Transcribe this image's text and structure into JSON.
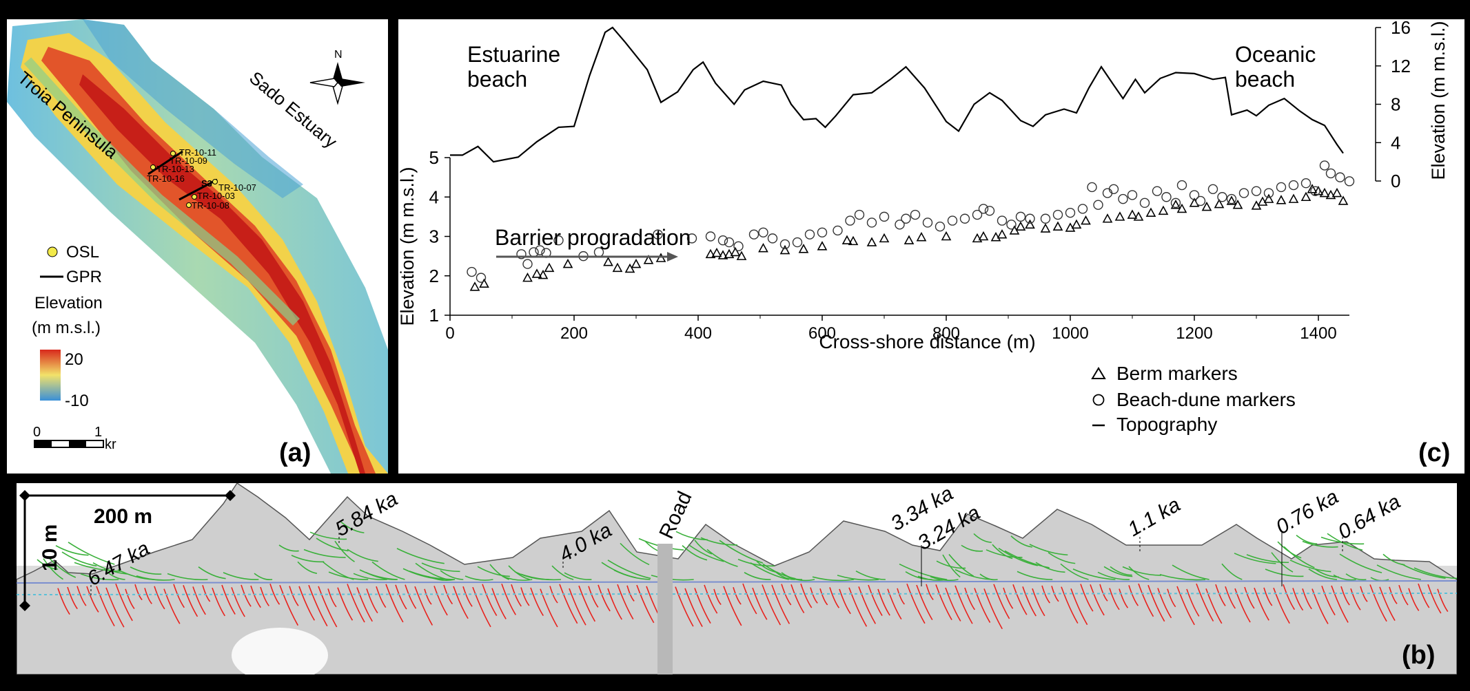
{
  "panel_a": {
    "label": "(a)",
    "place_names": {
      "peninsula": "Troia Peninsula",
      "estuary": "Sado Estuary"
    },
    "north_label": "N",
    "section_label": "S3",
    "samples": [
      "TR-10-11",
      "TR-10-09",
      "TR-10-13",
      "TR-10-16",
      "TR-10-07",
      "TR-10-03",
      "TR-10-08"
    ],
    "legend": {
      "osl": "OSL",
      "gpr": "GPR",
      "elevation_title_1": "Elevation",
      "elevation_title_2": "(m m.s.l.)",
      "max": "20",
      "min": "-10"
    },
    "scale": {
      "zero": "0",
      "one": "1",
      "unit": "kr"
    },
    "colors": {
      "low": "#3a8fd8",
      "mid": "#f2e26a",
      "high": "#d8281c"
    }
  },
  "panel_c": {
    "label": "(c)",
    "corner_left": [
      "Estuarine",
      "beach"
    ],
    "corner_right": [
      "Oceanic",
      "beach"
    ],
    "arrow_label": "Barrier progradation",
    "legend": [
      "Berm markers",
      "Beach-dune markers",
      "Topography"
    ]
  },
  "panel_b": {
    "label": "(b)",
    "scale_h": "200 m",
    "scale_v": "10 m",
    "road_label": "Road",
    "ages": [
      "6.47 ka",
      "5.84 ka",
      "4.0 ka",
      "3.34 ka",
      "3.24 ka",
      "1.1 ka",
      "0.76 ka",
      "0.64 ka"
    ],
    "colors": {
      "topsets": "#3ab03a",
      "foresets": "#e8231e",
      "bound": "#7a8ecf",
      "water": "#5bc0d8"
    }
  },
  "chart_data": {
    "type": "scatter",
    "title": "",
    "xlabel": "Cross-shore distance (m)",
    "ylabel": "Elevation (m m.s.l.)",
    "y2label": "Elevation (m m.s.l.)",
    "xlim": [
      0,
      1450
    ],
    "ylim": [
      1,
      5
    ],
    "y2lim": [
      0,
      16
    ],
    "xticks": [
      0,
      200,
      400,
      600,
      800,
      1000,
      1200,
      1400
    ],
    "yticks": [
      1,
      2,
      3,
      4,
      5
    ],
    "y2ticks": [
      0,
      4,
      8,
      12,
      16
    ],
    "series": [
      {
        "name": "Berm markers",
        "marker": "triangle",
        "points": [
          [
            40,
            1.72
          ],
          [
            55,
            1.8
          ],
          [
            125,
            1.95
          ],
          [
            140,
            2.05
          ],
          [
            150,
            2.02
          ],
          [
            160,
            2.2
          ],
          [
            190,
            2.3
          ],
          [
            255,
            2.35
          ],
          [
            270,
            2.2
          ],
          [
            290,
            2.18
          ],
          [
            300,
            2.3
          ],
          [
            320,
            2.4
          ],
          [
            340,
            2.45
          ],
          [
            420,
            2.55
          ],
          [
            430,
            2.58
          ],
          [
            440,
            2.52
          ],
          [
            450,
            2.55
          ],
          [
            460,
            2.6
          ],
          [
            470,
            2.5
          ],
          [
            505,
            2.7
          ],
          [
            540,
            2.65
          ],
          [
            570,
            2.68
          ],
          [
            600,
            2.75
          ],
          [
            640,
            2.9
          ],
          [
            650,
            2.88
          ],
          [
            680,
            2.85
          ],
          [
            700,
            2.95
          ],
          [
            740,
            2.9
          ],
          [
            760,
            2.98
          ],
          [
            800,
            3.0
          ],
          [
            850,
            2.95
          ],
          [
            860,
            3.0
          ],
          [
            880,
            2.98
          ],
          [
            890,
            3.05
          ],
          [
            910,
            3.15
          ],
          [
            920,
            3.25
          ],
          [
            935,
            3.3
          ],
          [
            960,
            3.2
          ],
          [
            980,
            3.25
          ],
          [
            1000,
            3.22
          ],
          [
            1010,
            3.3
          ],
          [
            1025,
            3.4
          ],
          [
            1060,
            3.45
          ],
          [
            1080,
            3.5
          ],
          [
            1100,
            3.55
          ],
          [
            1110,
            3.5
          ],
          [
            1130,
            3.6
          ],
          [
            1150,
            3.65
          ],
          [
            1170,
            3.8
          ],
          [
            1180,
            3.7
          ],
          [
            1200,
            3.85
          ],
          [
            1220,
            3.75
          ],
          [
            1240,
            3.82
          ],
          [
            1260,
            3.9
          ],
          [
            1270,
            3.8
          ],
          [
            1300,
            3.78
          ],
          [
            1310,
            3.88
          ],
          [
            1320,
            3.95
          ],
          [
            1340,
            3.92
          ],
          [
            1360,
            3.95
          ],
          [
            1380,
            4.0
          ],
          [
            1390,
            4.2
          ],
          [
            1400,
            4.15
          ],
          [
            1410,
            4.1
          ],
          [
            1420,
            4.05
          ],
          [
            1430,
            4.1
          ],
          [
            1440,
            3.9
          ]
        ]
      },
      {
        "name": "Beach-dune markers",
        "marker": "circle",
        "points": [
          [
            35,
            2.1
          ],
          [
            50,
            1.95
          ],
          [
            115,
            2.55
          ],
          [
            125,
            2.3
          ],
          [
            135,
            2.6
          ],
          [
            145,
            2.65
          ],
          [
            155,
            2.58
          ],
          [
            175,
            2.9
          ],
          [
            215,
            2.5
          ],
          [
            240,
            2.6
          ],
          [
            335,
            3.05
          ],
          [
            390,
            2.95
          ],
          [
            420,
            3.0
          ],
          [
            440,
            2.9
          ],
          [
            450,
            2.85
          ],
          [
            465,
            2.75
          ],
          [
            490,
            3.05
          ],
          [
            505,
            3.1
          ],
          [
            520,
            2.95
          ],
          [
            540,
            2.8
          ],
          [
            560,
            2.85
          ],
          [
            580,
            3.05
          ],
          [
            600,
            3.1
          ],
          [
            625,
            3.15
          ],
          [
            645,
            3.4
          ],
          [
            660,
            3.55
          ],
          [
            680,
            3.35
          ],
          [
            700,
            3.5
          ],
          [
            725,
            3.3
          ],
          [
            735,
            3.45
          ],
          [
            750,
            3.55
          ],
          [
            770,
            3.35
          ],
          [
            790,
            3.25
          ],
          [
            810,
            3.4
          ],
          [
            830,
            3.45
          ],
          [
            850,
            3.55
          ],
          [
            860,
            3.7
          ],
          [
            870,
            3.65
          ],
          [
            890,
            3.4
          ],
          [
            905,
            3.3
          ],
          [
            920,
            3.5
          ],
          [
            935,
            3.45
          ],
          [
            960,
            3.45
          ],
          [
            980,
            3.55
          ],
          [
            1000,
            3.6
          ],
          [
            1020,
            3.7
          ],
          [
            1035,
            4.25
          ],
          [
            1045,
            3.8
          ],
          [
            1060,
            4.1
          ],
          [
            1070,
            4.2
          ],
          [
            1085,
            3.95
          ],
          [
            1100,
            4.05
          ],
          [
            1120,
            3.85
          ],
          [
            1140,
            4.15
          ],
          [
            1155,
            4.0
          ],
          [
            1170,
            3.85
          ],
          [
            1180,
            4.3
          ],
          [
            1200,
            4.05
          ],
          [
            1210,
            3.9
          ],
          [
            1230,
            4.2
          ],
          [
            1245,
            4.0
          ],
          [
            1260,
            3.95
          ],
          [
            1280,
            4.1
          ],
          [
            1300,
            4.15
          ],
          [
            1320,
            4.1
          ],
          [
            1340,
            4.25
          ],
          [
            1360,
            4.3
          ],
          [
            1380,
            4.35
          ],
          [
            1395,
            4.15
          ],
          [
            1410,
            4.8
          ],
          [
            1420,
            4.6
          ],
          [
            1435,
            4.5
          ],
          [
            1450,
            4.4
          ]
        ]
      },
      {
        "name": "Topography",
        "marker": "line",
        "axis": "right",
        "points": [
          [
            0,
            2.7
          ],
          [
            20,
            2.7
          ],
          [
            45,
            3.6
          ],
          [
            70,
            2
          ],
          [
            110,
            2.5
          ],
          [
            140,
            4.1
          ],
          [
            175,
            5.6
          ],
          [
            200,
            5.7
          ],
          [
            225,
            11
          ],
          [
            250,
            15.5
          ],
          [
            262,
            16
          ],
          [
            282,
            14.5
          ],
          [
            318,
            11.6
          ],
          [
            340,
            8.2
          ],
          [
            367,
            9.3
          ],
          [
            392,
            11.6
          ],
          [
            408,
            12.4
          ],
          [
            428,
            10.2
          ],
          [
            458,
            8
          ],
          [
            475,
            9.5
          ],
          [
            505,
            10.4
          ],
          [
            534,
            10
          ],
          [
            550,
            8
          ],
          [
            570,
            6.4
          ],
          [
            590,
            6.5
          ],
          [
            605,
            5.6
          ],
          [
            622,
            6.8
          ],
          [
            650,
            9
          ],
          [
            680,
            9.2
          ],
          [
            710,
            10.6
          ],
          [
            735,
            11.9
          ],
          [
            765,
            9.7
          ],
          [
            800,
            6.2
          ],
          [
            820,
            5.2
          ],
          [
            845,
            8
          ],
          [
            870,
            9.2
          ],
          [
            890,
            8.4
          ],
          [
            920,
            6.3
          ],
          [
            940,
            5.7
          ],
          [
            960,
            6.9
          ],
          [
            990,
            7.5
          ],
          [
            1010,
            7.1
          ],
          [
            1030,
            9.7
          ],
          [
            1050,
            11.9
          ],
          [
            1070,
            10
          ],
          [
            1085,
            8.6
          ],
          [
            1105,
            10.6
          ],
          [
            1120,
            9.2
          ],
          [
            1145,
            10.7
          ],
          [
            1170,
            11.3
          ],
          [
            1200,
            11.2
          ],
          [
            1230,
            10.6
          ],
          [
            1250,
            10.8
          ],
          [
            1260,
            6.9
          ],
          [
            1285,
            7.4
          ],
          [
            1300,
            6.8
          ],
          [
            1320,
            7.9
          ],
          [
            1345,
            8.6
          ],
          [
            1370,
            7.3
          ],
          [
            1390,
            6.4
          ],
          [
            1410,
            5.8
          ],
          [
            1430,
            3.8
          ],
          [
            1440,
            2.9
          ]
        ]
      }
    ]
  }
}
